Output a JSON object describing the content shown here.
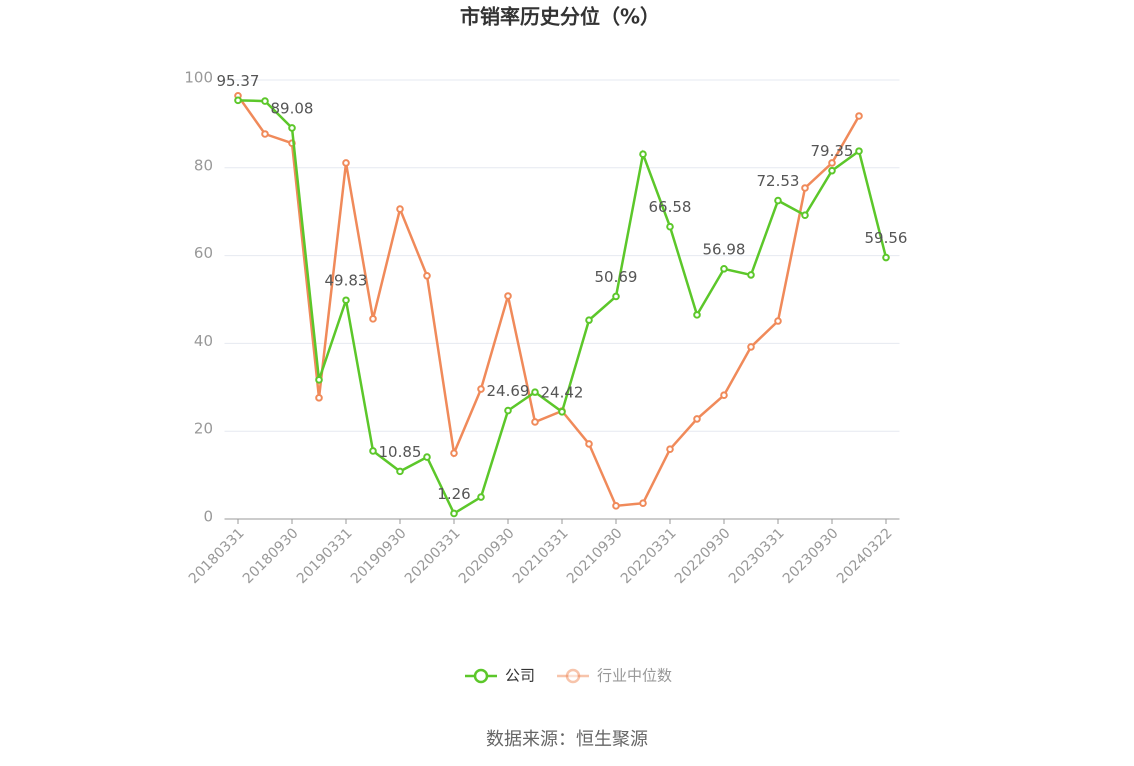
{
  "chart_data": {
    "type": "line",
    "title": "市销率历史分位（%）",
    "source": "数据来源：恒生聚源",
    "categories": [
      "20180331",
      null,
      "20180930",
      null,
      "20190331",
      null,
      "20190930",
      null,
      "20200331",
      null,
      "20200930",
      null,
      "20210331",
      null,
      "20210930",
      null,
      "20220331",
      null,
      "20220930",
      null,
      "20230331",
      null,
      "20230930",
      null,
      "20240322"
    ],
    "series": [
      {
        "name": "公司",
        "color": "#5cc72a",
        "data_labels": true,
        "values": [
          95.37,
          95.2,
          89.08,
          31.7,
          49.83,
          15.5,
          10.85,
          14.1,
          1.26,
          5.0,
          24.69,
          28.9,
          24.42,
          45.3,
          50.69,
          83.1,
          66.58,
          46.5,
          56.98,
          55.6,
          72.53,
          69.2,
          79.35,
          83.8,
          59.56
        ]
      },
      {
        "name": "行业中位数",
        "color": "#f08a5a",
        "data_labels": false,
        "values": [
          96.4,
          87.7,
          85.6,
          27.6,
          81.1,
          45.6,
          70.6,
          55.4,
          15.0,
          29.6,
          50.8,
          22.1,
          24.6,
          17.1,
          3.0,
          3.6,
          15.9,
          22.8,
          28.2,
          39.2,
          45.1,
          75.4,
          81.1,
          91.8,
          null
        ]
      }
    ],
    "ylim": [
      0,
      100
    ],
    "yticks": [
      0,
      20,
      40,
      60,
      80,
      100
    ],
    "grid": true
  }
}
